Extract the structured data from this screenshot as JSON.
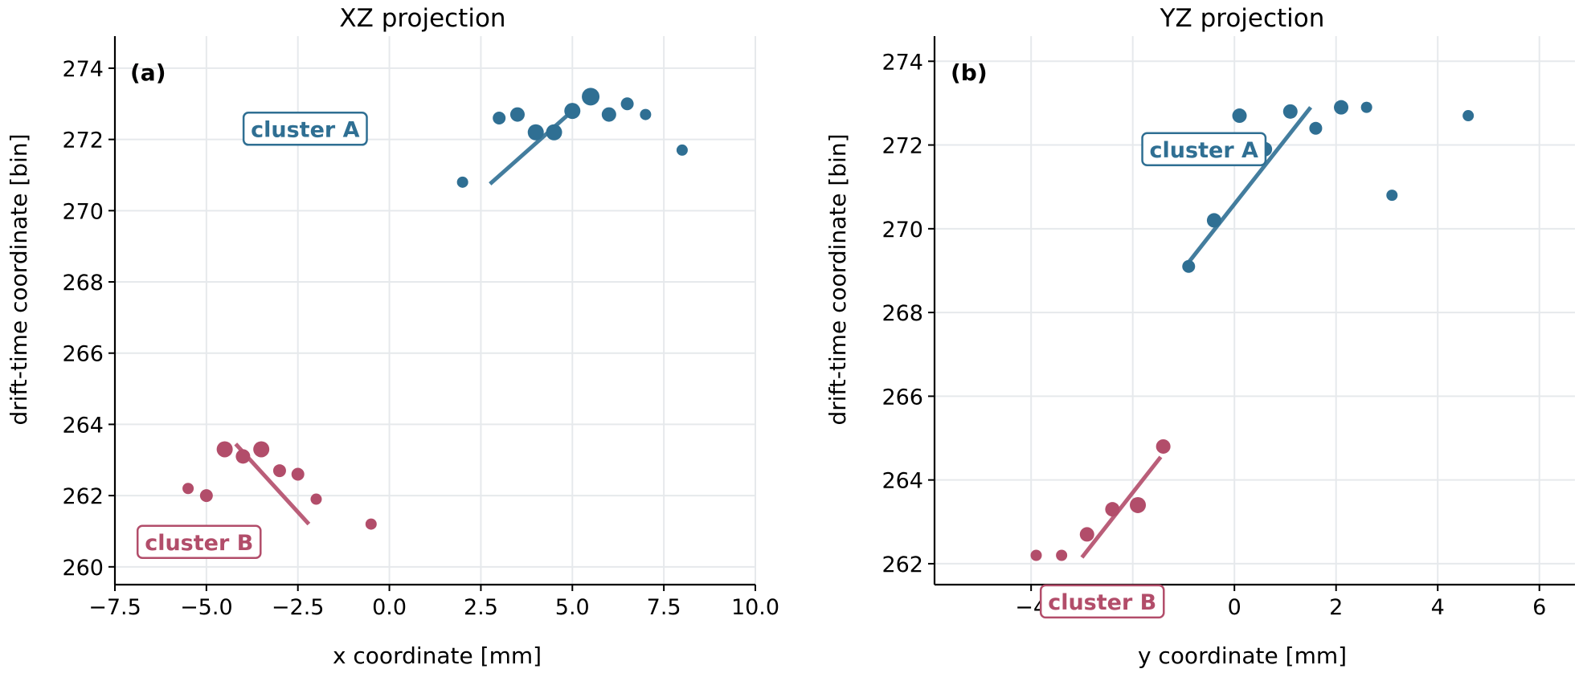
{
  "colors": {
    "cluster_a": "#2f6f93",
    "cluster_b": "#b24d6a"
  },
  "chart_data": [
    {
      "type": "scatter",
      "title": "XZ projection",
      "panel_label": "(a)",
      "xlabel": "x coordinate [mm]",
      "ylabel": "drift-time coordinate [bin]",
      "xlim": [
        -7.5,
        10.0
      ],
      "ylim": [
        259.5,
        274.9
      ],
      "xticks": [
        -7.5,
        -5.0,
        -2.5,
        0.0,
        2.5,
        5.0,
        7.5,
        10.0
      ],
      "xtick_labels": [
        "−7.5",
        "−5.0",
        "−2.5",
        "0.0",
        "2.5",
        "5.0",
        "7.5",
        "10.0"
      ],
      "yticks": [
        260,
        262,
        264,
        266,
        268,
        270,
        272,
        274
      ],
      "ytick_labels": [
        "260",
        "262",
        "264",
        "266",
        "268",
        "270",
        "272",
        "274"
      ],
      "grid": true,
      "series": [
        {
          "name": "cluster A",
          "color_key": "cluster_a",
          "points": [
            {
              "x": 2.0,
              "y": 270.8,
              "size": 7
            },
            {
              "x": 3.0,
              "y": 272.6,
              "size": 8
            },
            {
              "x": 3.5,
              "y": 272.7,
              "size": 9
            },
            {
              "x": 4.0,
              "y": 272.2,
              "size": 10
            },
            {
              "x": 4.5,
              "y": 272.2,
              "size": 10
            },
            {
              "x": 5.0,
              "y": 272.8,
              "size": 10
            },
            {
              "x": 5.5,
              "y": 273.2,
              "size": 11
            },
            {
              "x": 6.0,
              "y": 272.7,
              "size": 9
            },
            {
              "x": 6.5,
              "y": 273.0,
              "size": 8
            },
            {
              "x": 7.0,
              "y": 272.7,
              "size": 7
            },
            {
              "x": 8.0,
              "y": 271.7,
              "size": 7
            }
          ],
          "fit_line": {
            "x": [
              2.75,
              5.0
            ],
            "y": [
              270.75,
              272.8
            ]
          },
          "label_pos": {
            "x": -2.3,
            "y": 272.3
          }
        },
        {
          "name": "cluster B",
          "color_key": "cluster_b",
          "points": [
            {
              "x": -5.5,
              "y": 262.2,
              "size": 7
            },
            {
              "x": -5.0,
              "y": 262.0,
              "size": 8
            },
            {
              "x": -4.5,
              "y": 263.3,
              "size": 10
            },
            {
              "x": -4.0,
              "y": 263.1,
              "size": 9
            },
            {
              "x": -3.5,
              "y": 263.3,
              "size": 10
            },
            {
              "x": -3.0,
              "y": 262.7,
              "size": 8
            },
            {
              "x": -2.5,
              "y": 262.6,
              "size": 8
            },
            {
              "x": -2.0,
              "y": 261.9,
              "size": 7
            },
            {
              "x": -0.5,
              "y": 261.2,
              "size": 7
            }
          ],
          "fit_line": {
            "x": [
              -4.2,
              -2.2
            ],
            "y": [
              263.45,
              261.2
            ]
          },
          "label_pos": {
            "x": -5.2,
            "y": 260.7
          }
        }
      ]
    },
    {
      "type": "scatter",
      "title": "YZ projection",
      "panel_label": "(b)",
      "xlabel": "y coordinate [mm]",
      "ylabel": "drift-time coordinate [bin]",
      "xlim": [
        -5.9,
        6.7
      ],
      "ylim": [
        261.5,
        274.6
      ],
      "xticks": [
        -4,
        -2,
        0,
        2,
        4,
        6
      ],
      "xtick_labels": [
        "−4",
        "−2",
        "0",
        "2",
        "4",
        "6"
      ],
      "yticks": [
        262,
        264,
        266,
        268,
        270,
        272,
        274
      ],
      "ytick_labels": [
        "262",
        "264",
        "266",
        "268",
        "270",
        "272",
        "274"
      ],
      "grid": true,
      "series": [
        {
          "name": "cluster A",
          "color_key": "cluster_a",
          "points": [
            {
              "x": -0.9,
              "y": 269.1,
              "size": 8
            },
            {
              "x": -0.4,
              "y": 270.2,
              "size": 9
            },
            {
              "x": 0.1,
              "y": 272.7,
              "size": 9
            },
            {
              "x": 0.6,
              "y": 271.9,
              "size": 9
            },
            {
              "x": 1.1,
              "y": 272.8,
              "size": 9
            },
            {
              "x": 1.6,
              "y": 272.4,
              "size": 8
            },
            {
              "x": 2.1,
              "y": 272.9,
              "size": 9
            },
            {
              "x": 2.6,
              "y": 272.9,
              "size": 7
            },
            {
              "x": 3.1,
              "y": 270.8,
              "size": 7
            },
            {
              "x": 4.6,
              "y": 272.7,
              "size": 7
            }
          ],
          "fit_line": {
            "x": [
              -0.9,
              1.5
            ],
            "y": [
              269.2,
              272.9
            ]
          },
          "label_pos": {
            "x": -0.6,
            "y": 271.9
          }
        },
        {
          "name": "cluster B",
          "color_key": "cluster_b",
          "points": [
            {
              "x": -3.9,
              "y": 262.2,
              "size": 7
            },
            {
              "x": -3.4,
              "y": 262.2,
              "size": 7
            },
            {
              "x": -2.9,
              "y": 262.7,
              "size": 9
            },
            {
              "x": -2.4,
              "y": 263.3,
              "size": 9
            },
            {
              "x": -1.9,
              "y": 263.4,
              "size": 10
            },
            {
              "x": -1.4,
              "y": 264.8,
              "size": 9
            }
          ],
          "fit_line": {
            "x": [
              -3.0,
              -1.45
            ],
            "y": [
              262.15,
              264.55
            ]
          },
          "label_pos": {
            "x": -2.6,
            "y": 261.1
          }
        }
      ]
    }
  ]
}
